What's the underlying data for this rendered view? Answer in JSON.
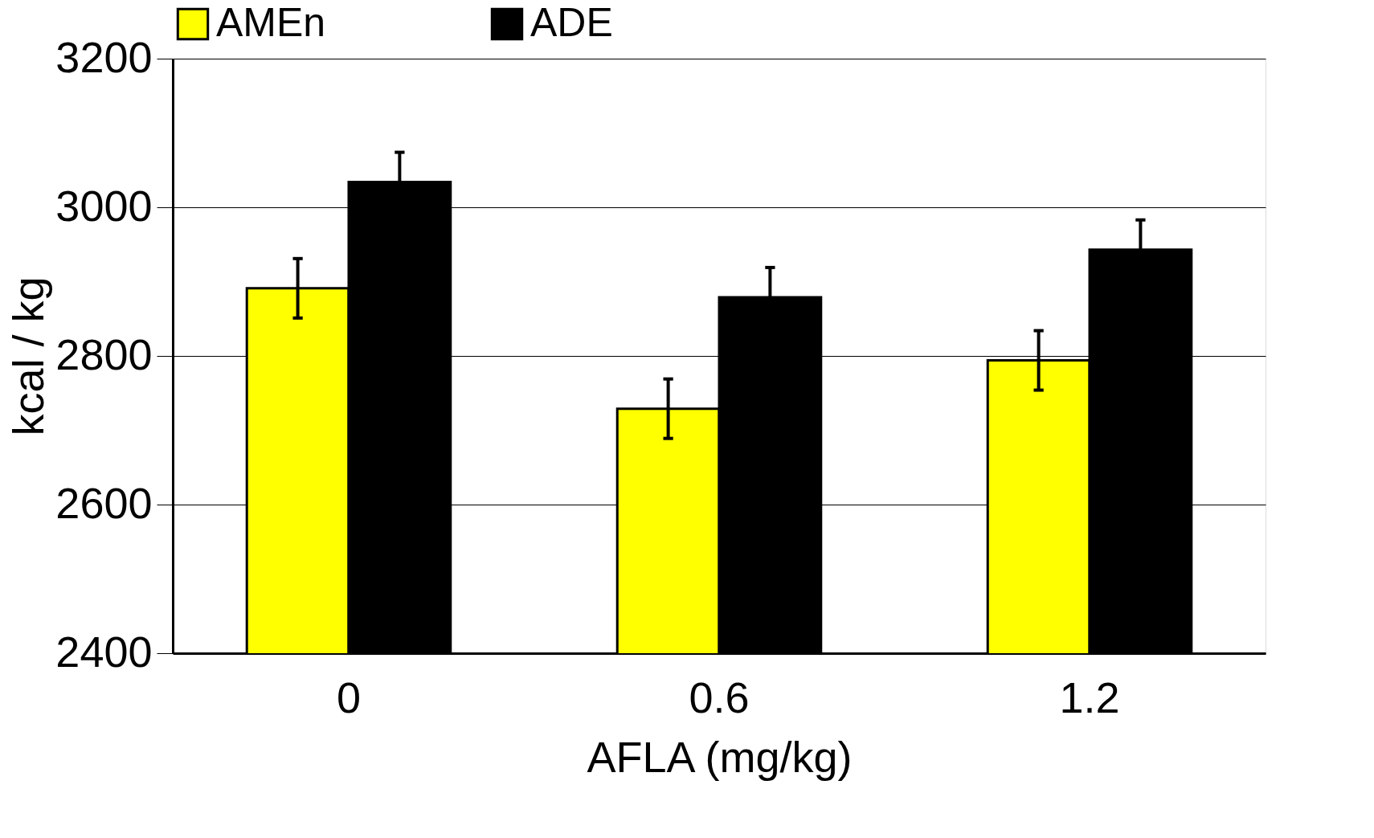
{
  "chart_data": {
    "type": "bar",
    "xlabel": "AFLA (mg/kg)",
    "ylabel": "kcal / kg",
    "categories": [
      "0",
      "0.6",
      "1.2"
    ],
    "series": [
      {
        "name": "AMEn",
        "color": "#ffff00",
        "values": [
          2891,
          2729,
          2794
        ],
        "errors": [
          40,
          40,
          40
        ]
      },
      {
        "name": "ADE",
        "color": "#000000",
        "values": [
          3034,
          2879,
          2943
        ],
        "errors": [
          40,
          40,
          40
        ]
      }
    ],
    "ylim": [
      2400,
      3200
    ],
    "yticks": [
      2400,
      2600,
      2800,
      3000,
      3200
    ],
    "grid": "y",
    "legend": "top"
  }
}
